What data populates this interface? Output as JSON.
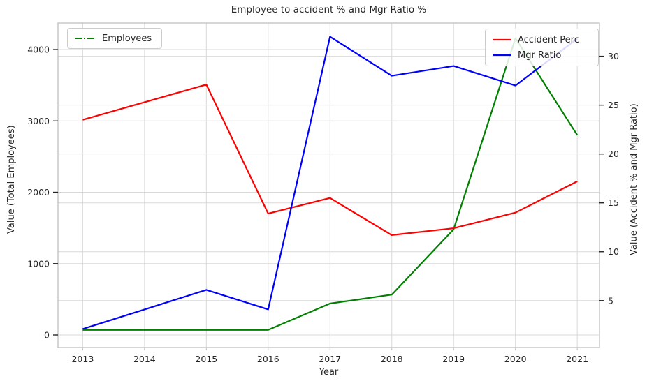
{
  "title": "Employee to accident % and Mgr Ratio %",
  "xlabel": "Year",
  "ylabel_left": "Value (Total Employees)",
  "ylabel_right": "Value (Accident % and Mgr Ratio)",
  "legend_left": {
    "items": [
      {
        "label": "Employees",
        "color": "#008000"
      }
    ]
  },
  "legend_right": {
    "items": [
      {
        "label": "Accident Perc",
        "color": "#ff0000"
      },
      {
        "label": "Mgr Ratio",
        "color": "#0000ff"
      }
    ]
  },
  "chart_data": {
    "type": "line",
    "x": [
      2013,
      2014,
      2015,
      2016,
      2017,
      2018,
      2019,
      2020,
      2021
    ],
    "series": [
      {
        "name": "Employees",
        "axis": "left",
        "color": "#008000",
        "linestyle": "solid",
        "values": [
          70,
          70,
          70,
          70,
          440,
          565,
          1480,
          4160,
          2800
        ]
      },
      {
        "name": "Accident Perc",
        "axis": "right",
        "color": "#ff0000",
        "linestyle": "solid",
        "values": [
          23.5,
          25.3,
          27.1,
          13.9,
          15.5,
          11.7,
          12.4,
          14.0,
          17.2
        ]
      },
      {
        "name": "Mgr Ratio",
        "axis": "right",
        "color": "#0000ff",
        "linestyle": "solid",
        "values": [
          2.1,
          4.1,
          6.1,
          4.1,
          32.0,
          28.0,
          29.0,
          27.0,
          31.8
        ]
      }
    ],
    "left_ticks": [
      0,
      1000,
      2000,
      3000,
      4000
    ],
    "right_ticks": [
      5,
      10,
      15,
      20,
      25,
      30
    ],
    "left_ylim": [
      -176,
      4372
    ],
    "right_ylim": [
      0.2,
      33.4
    ],
    "xlim": [
      2012.6,
      2021.36
    ],
    "grid": true,
    "legend_positions": [
      "upper left",
      "upper right"
    ],
    "colors": {
      "grid": "#d9d9d9",
      "spine": "#c0c0c0",
      "tick": "#262626",
      "text": "#262626"
    }
  }
}
